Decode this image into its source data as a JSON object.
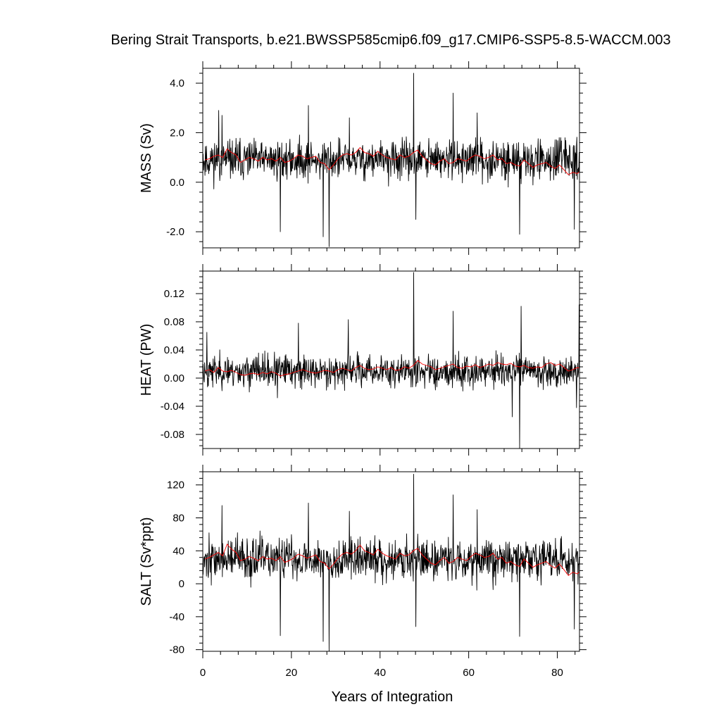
{
  "chart_data": {
    "title": "Bering Strait Transports, b.e21.BWSSP585cmip6.f09_g17.CMIP6-SSP5-8.5-WACCM.003",
    "xlabel": "Years of Integration",
    "xlim": [
      0,
      85
    ],
    "xticks": [
      0,
      20,
      40,
      60,
      80
    ],
    "xtick_labels": [
      "0",
      "20",
      "40",
      "60",
      "80"
    ],
    "line_colors": {
      "monthly": "#000000",
      "annual": "#ff0000"
    },
    "panels": [
      {
        "type": "line",
        "ylabel": "MASS (Sv)",
        "ylim": [
          -2.65,
          4.6
        ],
        "yticks": [
          4.0,
          2.0,
          0.0,
          -2.0
        ],
        "ytick_labels": [
          "4.0",
          "2.0",
          "0.0",
          "-2.0"
        ],
        "series": [
          {
            "role": "monthly",
            "base": 0.9,
            "noise": 0.55,
            "seed": 11,
            "spikes": [
              [
                3.6,
                2.9
              ],
              [
                4.3,
                2.7
              ],
              [
                17.5,
                -2.0
              ],
              [
                23.8,
                3.1
              ],
              [
                27.2,
                -2.2
              ],
              [
                28.5,
                -2.6
              ],
              [
                33.1,
                2.6
              ],
              [
                47.6,
                4.4
              ],
              [
                48.1,
                -1.5
              ],
              [
                56.5,
                3.6
              ],
              [
                61.9,
                2.8
              ],
              [
                71.5,
                -2.1
              ],
              [
                83.8,
                -1.9
              ]
            ]
          },
          {
            "role": "annual",
            "values": [
              0.9,
              0.95,
              1.05,
              1.1,
              1.0,
              1.35,
              1.2,
              1.1,
              0.8,
              0.9,
              1.0,
              0.95,
              0.85,
              1.0,
              0.9,
              0.95,
              0.85,
              1.0,
              0.8,
              0.85,
              0.95,
              1.1,
              1.05,
              0.95,
              1.0,
              1.05,
              0.8,
              0.75,
              0.5,
              0.7,
              0.95,
              1.1,
              1.15,
              1.1,
              1.2,
              1.4,
              1.2,
              1.15,
              1.05,
              1.25,
              1.1,
              1.0,
              0.95,
              0.9,
              1.1,
              1.0,
              1.05,
              1.2,
              1.3,
              1.05,
              0.9,
              0.75,
              0.7,
              0.85,
              0.95,
              0.75,
              0.8,
              0.95,
              0.9,
              0.85,
              1.0,
              1.1,
              1.05,
              0.95,
              1.0,
              1.1,
              0.9,
              0.95,
              0.75,
              0.8,
              0.7,
              0.65,
              0.9,
              0.75,
              0.6,
              0.7,
              0.75,
              0.8,
              0.65,
              0.55,
              0.7,
              0.5,
              0.3,
              0.4,
              0.35,
              0.5
            ]
          }
        ]
      },
      {
        "type": "line",
        "ylabel": "HEAT (PW)",
        "ylim": [
          -0.1,
          0.152
        ],
        "yticks": [
          0.12,
          0.08,
          0.04,
          0.0,
          -0.04,
          -0.08
        ],
        "ytick_labels": [
          "0.12",
          "0.08",
          "0.04",
          "0.00",
          "-0.04",
          "-0.08"
        ],
        "series": [
          {
            "role": "monthly",
            "base": 0.01,
            "noise": 0.016,
            "seed": 23,
            "spikes": [
              [
                0.9,
                0.065
              ],
              [
                16.8,
                -0.028
              ],
              [
                21.6,
                0.078
              ],
              [
                32.8,
                0.083
              ],
              [
                47.6,
                0.15
              ],
              [
                56.5,
                0.095
              ],
              [
                69.8,
                -0.055
              ],
              [
                71.5,
                -0.1
              ],
              [
                71.8,
                0.102
              ],
              [
                84.3,
                -0.042
              ],
              [
                84.9,
                0.104
              ]
            ]
          },
          {
            "role": "annual",
            "values": [
              0.01,
              0.012,
              0.008,
              0.015,
              0.01,
              0.009,
              0.011,
              0.008,
              0.005,
              0.004,
              0.006,
              0.007,
              0.005,
              0.008,
              0.006,
              0.009,
              0.007,
              0.003,
              0.005,
              0.006,
              0.008,
              0.01,
              0.012,
              0.01,
              0.008,
              0.007,
              0.009,
              0.011,
              0.01,
              0.008,
              0.012,
              0.014,
              0.012,
              0.01,
              0.015,
              0.018,
              0.014,
              0.012,
              0.013,
              0.016,
              0.014,
              0.012,
              0.015,
              0.011,
              0.012,
              0.016,
              0.014,
              0.018,
              0.025,
              0.02,
              0.018,
              0.016,
              0.012,
              0.014,
              0.016,
              0.018,
              0.02,
              0.015,
              0.014,
              0.017,
              0.016,
              0.019,
              0.015,
              0.017,
              0.02,
              0.018,
              0.022,
              0.02,
              0.019,
              0.021,
              0.017,
              0.016,
              0.018,
              0.015,
              0.014,
              0.016,
              0.015,
              0.02,
              0.022,
              0.018,
              0.02,
              0.015,
              0.01,
              0.012,
              0.015,
              0.014
            ]
          }
        ]
      },
      {
        "type": "line",
        "ylabel": "SALT (Sv*ppt)",
        "ylim": [
          -82,
          136
        ],
        "yticks": [
          120,
          80,
          40,
          0,
          -40,
          -80
        ],
        "ytick_labels": [
          "120",
          "80",
          "40",
          "0",
          "-40",
          "-80"
        ],
        "series": [
          {
            "role": "monthly",
            "base": 30,
            "noise": 18,
            "seed": 37,
            "spikes": [
              [
                4.3,
                95
              ],
              [
                17.5,
                -63
              ],
              [
                23.8,
                98
              ],
              [
                27.2,
                -70
              ],
              [
                28.5,
                -82
              ],
              [
                33.1,
                88
              ],
              [
                47.6,
                133
              ],
              [
                48.1,
                -52
              ],
              [
                56.5,
                108
              ],
              [
                61.9,
                90
              ],
              [
                71.5,
                -64
              ],
              [
                83.8,
                -55
              ]
            ]
          },
          {
            "role": "annual",
            "values": [
              30,
              32,
              35,
              38,
              34,
              48,
              42,
              38,
              28,
              30,
              33,
              31,
              28,
              33,
              30,
              31,
              28,
              33,
              26,
              28,
              31,
              36,
              34,
              31,
              33,
              35,
              27,
              25,
              18,
              24,
              31,
              36,
              38,
              36,
              40,
              47,
              40,
              38,
              35,
              42,
              37,
              34,
              32,
              30,
              37,
              34,
              35,
              40,
              43,
              35,
              30,
              25,
              23,
              28,
              32,
              25,
              27,
              32,
              30,
              28,
              33,
              37,
              35,
              32,
              33,
              37,
              30,
              32,
              25,
              27,
              23,
              21,
              30,
              25,
              20,
              23,
              25,
              27,
              22,
              19,
              24,
              17,
              10,
              14,
              12,
              17
            ]
          }
        ]
      }
    ]
  }
}
